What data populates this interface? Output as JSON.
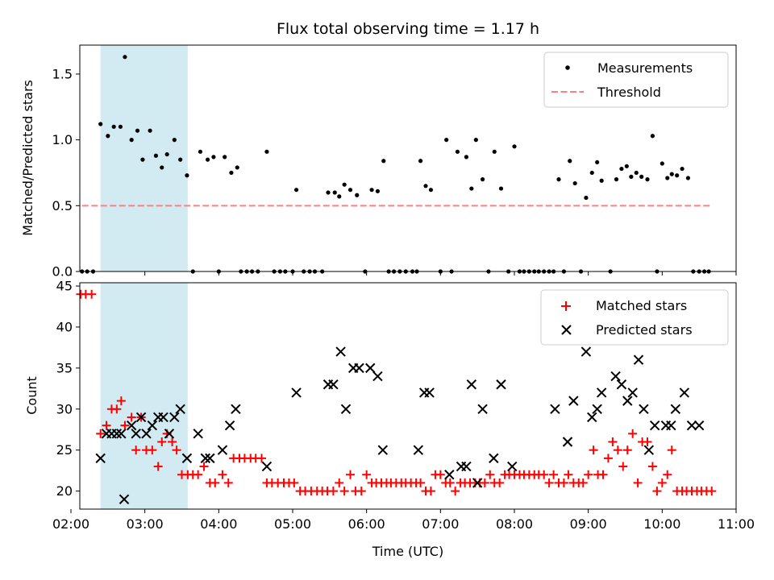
{
  "chart_data": [
    {
      "type": "scatter",
      "title": "Flux total observing time = 1.17 h",
      "xlabel": "",
      "ylabel": "Matched/Predicted stars",
      "xlim": [
        2.12,
        11.0
      ],
      "ylim": [
        0.0,
        1.72
      ],
      "yticks": [
        0.0,
        0.5,
        1.0,
        1.5
      ],
      "ytick_labels": [
        "0.0",
        "0.5",
        "1.0",
        "1.5"
      ],
      "shaded_span": {
        "x": [
          2.4,
          3.58
        ],
        "color": "#add8e6"
      },
      "legend": {
        "placement": "top-right",
        "entries": [
          "Measurements",
          "Threshold"
        ]
      },
      "threshold": {
        "name": "Threshold",
        "y": 0.5,
        "x": [
          2.15,
          10.65
        ],
        "color": "#ff7f7f",
        "style": "dashed"
      },
      "series": [
        {
          "name": "Measurements",
          "color": "#000000",
          "marker": "dot",
          "x": [
            2.15,
            2.22,
            2.3,
            2.4,
            2.5,
            2.58,
            2.67,
            2.73,
            2.82,
            2.9,
            2.97,
            3.07,
            3.15,
            3.23,
            3.3,
            3.4,
            3.48,
            3.57,
            3.65,
            3.75,
            3.85,
            3.93,
            4.0,
            4.08,
            4.17,
            4.25,
            4.3,
            4.38,
            4.45,
            4.53,
            4.65,
            4.75,
            4.83,
            4.9,
            5.0,
            5.05,
            5.15,
            5.23,
            5.3,
            5.4,
            5.48,
            5.57,
            5.63,
            5.7,
            5.78,
            5.87,
            5.98,
            6.07,
            6.15,
            6.23,
            6.3,
            6.37,
            6.45,
            6.53,
            6.62,
            6.68,
            6.73,
            6.8,
            6.87,
            7.0,
            7.08,
            7.15,
            7.23,
            7.35,
            7.42,
            7.48,
            7.57,
            7.65,
            7.73,
            7.82,
            7.92,
            8.0,
            8.07,
            8.13,
            8.2,
            8.27,
            8.33,
            8.4,
            8.47,
            8.53,
            8.6,
            8.67,
            8.75,
            8.82,
            8.9,
            8.97,
            9.05,
            9.12,
            9.18,
            9.3,
            9.38,
            9.45,
            9.52,
            9.58,
            9.65,
            9.72,
            9.8,
            9.87,
            9.93,
            10.0,
            10.07,
            10.13,
            10.2,
            10.27,
            10.35,
            10.42,
            10.5,
            10.57,
            10.63
          ],
          "y": [
            0.0,
            0.0,
            0.0,
            1.12,
            1.03,
            1.1,
            1.1,
            1.63,
            1.0,
            1.07,
            0.85,
            1.07,
            0.88,
            0.79,
            0.89,
            1.0,
            0.85,
            0.73,
            0.0,
            0.91,
            0.85,
            0.87,
            0.0,
            0.87,
            0.75,
            0.79,
            0.0,
            0.0,
            0.0,
            0.0,
            0.91,
            0.0,
            0.0,
            0.0,
            0.0,
            0.62,
            0.0,
            0.0,
            0.0,
            0.0,
            0.6,
            0.6,
            0.57,
            0.66,
            0.62,
            0.58,
            0.0,
            0.62,
            0.61,
            0.84,
            0.0,
            0.0,
            0.0,
            0.0,
            0.0,
            0.0,
            0.84,
            0.65,
            0.62,
            0.0,
            1.0,
            0.0,
            0.91,
            0.87,
            0.63,
            1.0,
            0.7,
            0.0,
            0.91,
            0.63,
            0.0,
            0.95,
            0.0,
            0.0,
            0.0,
            0.0,
            0.0,
            0.0,
            0.0,
            0.0,
            0.7,
            0.0,
            0.84,
            0.67,
            0.0,
            0.56,
            0.75,
            0.83,
            0.69,
            0.0,
            0.7,
            0.78,
            0.8,
            0.72,
            0.75,
            0.72,
            0.7,
            1.03,
            0.0,
            0.82,
            0.71,
            0.74,
            0.73,
            0.78,
            0.71,
            0.0,
            0.0,
            0.0,
            0.0
          ]
        }
      ]
    },
    {
      "type": "scatter",
      "title": "",
      "xlabel": "Time (UTC)",
      "ylabel": "Count",
      "xlim": [
        2.12,
        11.0
      ],
      "ylim": [
        17.8,
        45.4
      ],
      "yticks": [
        20,
        25,
        30,
        35,
        40,
        45
      ],
      "ytick_labels": [
        "20",
        "25",
        "30",
        "35",
        "40",
        "45"
      ],
      "xticks": [
        2,
        3,
        4,
        5,
        6,
        7,
        8,
        9,
        10,
        11
      ],
      "xtick_labels": [
        "02:00",
        "03:00",
        "04:00",
        "05:00",
        "06:00",
        "07:00",
        "08:00",
        "09:00",
        "10:00",
        "11:00"
      ],
      "shaded_span": {
        "x": [
          2.4,
          3.58
        ],
        "color": "#add8e6"
      },
      "legend": {
        "placement": "top-right",
        "entries": [
          "Matched stars",
          "Predicted stars"
        ]
      },
      "series": [
        {
          "name": "Matched stars",
          "color": "#ff0000",
          "marker": "plus",
          "x": [
            2.13,
            2.2,
            2.28,
            2.4,
            2.48,
            2.55,
            2.62,
            2.68,
            2.73,
            2.82,
            2.88,
            2.95,
            3.02,
            3.1,
            3.18,
            3.23,
            3.3,
            3.37,
            3.43,
            3.5,
            3.58,
            3.65,
            3.72,
            3.8,
            3.88,
            3.95,
            4.05,
            4.13,
            4.2,
            4.28,
            4.35,
            4.43,
            4.5,
            4.58,
            4.65,
            4.72,
            4.8,
            4.88,
            4.95,
            5.02,
            5.1,
            5.17,
            5.25,
            5.33,
            5.4,
            5.47,
            5.55,
            5.63,
            5.7,
            5.78,
            5.85,
            5.93,
            6.0,
            6.07,
            6.13,
            6.2,
            6.27,
            6.33,
            6.4,
            6.47,
            6.53,
            6.6,
            6.67,
            6.73,
            6.8,
            6.87,
            6.93,
            7.0,
            7.07,
            7.13,
            7.2,
            7.27,
            7.33,
            7.4,
            7.47,
            7.53,
            7.6,
            7.67,
            7.73,
            7.8,
            7.87,
            7.93,
            8.0,
            8.07,
            8.13,
            8.2,
            8.27,
            8.33,
            8.4,
            8.47,
            8.53,
            8.6,
            8.67,
            8.73,
            8.8,
            8.87,
            8.93,
            9.0,
            9.07,
            9.13,
            9.2,
            9.27,
            9.33,
            9.4,
            9.47,
            9.53,
            9.6,
            9.67,
            9.73,
            9.8,
            9.87,
            9.93,
            10.0,
            10.07,
            10.13,
            10.2,
            10.27,
            10.33,
            10.4,
            10.47,
            10.53,
            10.6,
            10.67
          ],
          "y": [
            44,
            44,
            44,
            27,
            28,
            30,
            30,
            31,
            28,
            29,
            25,
            29,
            25,
            25,
            23,
            26,
            27,
            26,
            25,
            22,
            22,
            22,
            22,
            23,
            21,
            21,
            22,
            21,
            24,
            24,
            24,
            24,
            24,
            24,
            21,
            21,
            21,
            21,
            21,
            21,
            20,
            20,
            20,
            20,
            20,
            20,
            20,
            21,
            20,
            22,
            20,
            20,
            22,
            21,
            21,
            21,
            21,
            21,
            21,
            21,
            21,
            21,
            21,
            21,
            20,
            20,
            22,
            22,
            21,
            21,
            20,
            21,
            21,
            21,
            21,
            21,
            21,
            22,
            21,
            21,
            22,
            22,
            22,
            22,
            22,
            22,
            22,
            22,
            22,
            21,
            22,
            21,
            21,
            22,
            21,
            21,
            21,
            22,
            25,
            22,
            22,
            24,
            26,
            25,
            23,
            25,
            27,
            21,
            26,
            26,
            23,
            20,
            21,
            22,
            25,
            20,
            20,
            20,
            20,
            20,
            20,
            20,
            20
          ]
        },
        {
          "name": "Predicted stars",
          "color": "#000000",
          "marker": "x",
          "x": [
            2.4,
            2.48,
            2.55,
            2.62,
            2.68,
            2.72,
            2.82,
            2.88,
            2.95,
            3.02,
            3.1,
            3.18,
            3.25,
            3.33,
            3.4,
            3.48,
            3.57,
            3.72,
            3.82,
            3.88,
            4.05,
            4.15,
            4.23,
            4.65,
            5.05,
            5.48,
            5.55,
            5.65,
            5.72,
            5.82,
            5.9,
            6.05,
            6.15,
            6.22,
            6.7,
            6.78,
            6.85,
            7.12,
            7.28,
            7.35,
            7.42,
            7.5,
            7.57,
            7.72,
            7.82,
            7.97,
            8.55,
            8.72,
            8.8,
            8.97,
            9.05,
            9.12,
            9.18,
            9.37,
            9.45,
            9.53,
            9.6,
            9.68,
            9.75,
            9.82,
            9.9,
            10.05,
            10.12,
            10.18,
            10.3,
            10.4,
            10.5
          ],
          "y": [
            24,
            27,
            27,
            27,
            27,
            19,
            28,
            27,
            29,
            27,
            28,
            29,
            29,
            27,
            29,
            30,
            24,
            27,
            24,
            24,
            25,
            28,
            30,
            23,
            32,
            33,
            33,
            37,
            30,
            35,
            35,
            35,
            34,
            25,
            25,
            32,
            32,
            22,
            23,
            23,
            33,
            21,
            30,
            24,
            33,
            23,
            30,
            26,
            31,
            37,
            29,
            30,
            32,
            34,
            33,
            31,
            32,
            36,
            30,
            25,
            28,
            28,
            28,
            30,
            32,
            28,
            28
          ]
        }
      ]
    }
  ]
}
